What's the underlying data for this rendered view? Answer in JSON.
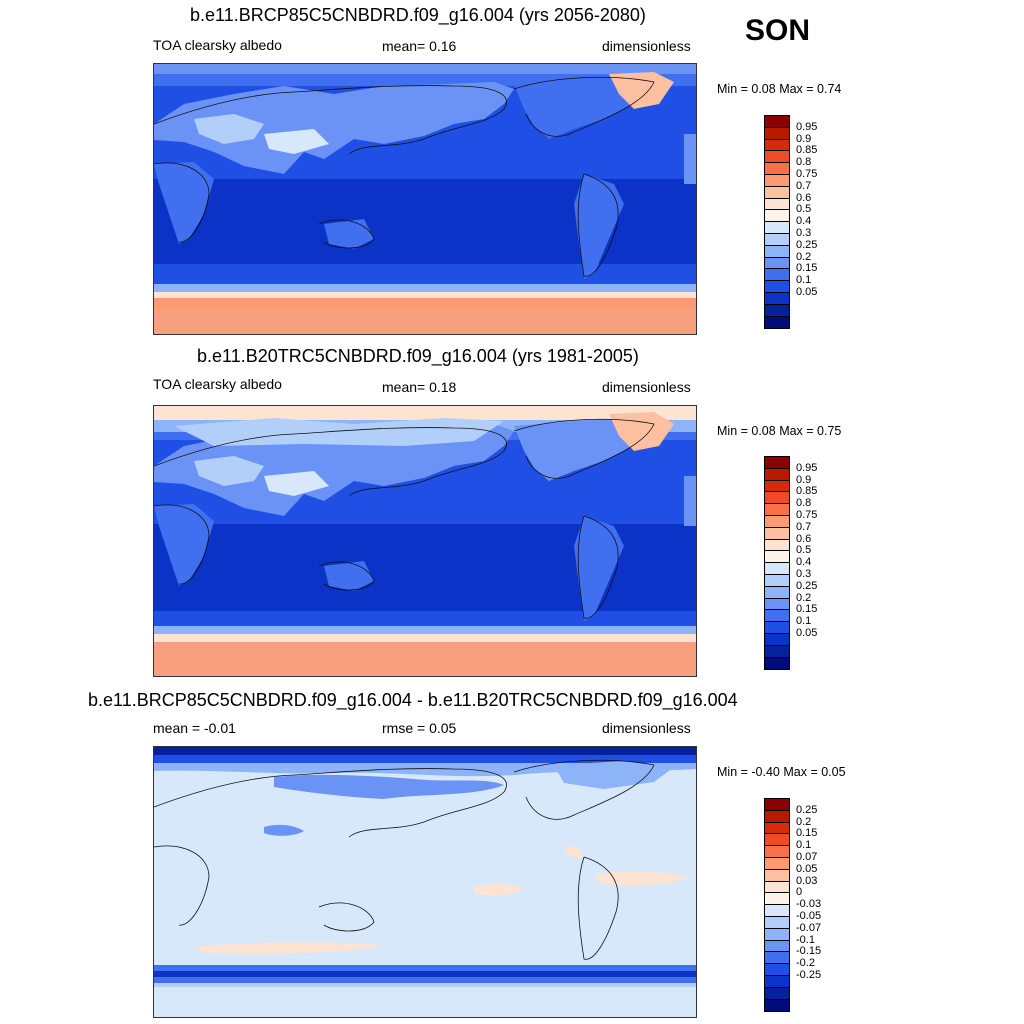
{
  "season": "SON",
  "panels": [
    {
      "title": "b.e11.BRCP85C5CNBDRD.f09_g16.004 (yrs 2056-2080)",
      "left_label": "TOA clearsky albedo",
      "center_label": "mean=   0.16",
      "right_label": "dimensionless",
      "minmax": "Min =   0.08 Max =   0.74",
      "colorbar": {
        "colors": [
          "#8b0000",
          "#b81a00",
          "#d62a0a",
          "#ee4c24",
          "#f8704a",
          "#fc9a72",
          "#fdc0a0",
          "#fde4d2",
          "#fdf3ea",
          "#d6e8fa",
          "#b2cffa",
          "#8db3f8",
          "#6a93f5",
          "#4070ef",
          "#1f4fe5",
          "#0b33c7",
          "#06229a",
          "#000c7a"
        ],
        "labels": [
          "0.95",
          "0.9",
          "0.85",
          "0.8",
          "0.75",
          "0.7",
          "0.6",
          "0.5",
          "0.4",
          "0.3",
          "0.25",
          "0.2",
          "0.15",
          "0.1",
          "0.05"
        ]
      }
    },
    {
      "title": "b.e11.B20TRC5CNBDRD.f09_g16.004 (yrs 1981-2005)",
      "left_label": "TOA clearsky albedo",
      "center_label": "mean=   0.18",
      "right_label": "dimensionless",
      "minmax": "Min =   0.08 Max =   0.75",
      "colorbar": {
        "colors": [
          "#8b0000",
          "#b81a00",
          "#d62a0a",
          "#ee4c24",
          "#f8704a",
          "#fc9a72",
          "#fdc0a0",
          "#fde4d2",
          "#fdf3ea",
          "#d6e8fa",
          "#b2cffa",
          "#8db3f8",
          "#6a93f5",
          "#4070ef",
          "#1f4fe5",
          "#0b33c7",
          "#06229a",
          "#000c7a"
        ],
        "labels": [
          "0.95",
          "0.9",
          "0.85",
          "0.8",
          "0.75",
          "0.7",
          "0.6",
          "0.5",
          "0.4",
          "0.3",
          "0.25",
          "0.2",
          "0.15",
          "0.1",
          "0.05"
        ]
      }
    },
    {
      "title": "b.e11.BRCP85C5CNBDRD.f09_g16.004 - b.e11.B20TRC5CNBDRD.f09_g16.004",
      "left_label": "mean =  -0.01",
      "center_label": "rmse =   0.05",
      "right_label": "dimensionless",
      "minmax": "Min =  -0.40 Max =   0.05",
      "colorbar": {
        "colors": [
          "#8b0000",
          "#b81a00",
          "#d62a0a",
          "#ee4c24",
          "#f8704a",
          "#fc9a72",
          "#fdc0a0",
          "#fde4d2",
          "#fdf3ea",
          "#d6e8fa",
          "#b2cffa",
          "#8db3f8",
          "#6a93f5",
          "#4070ef",
          "#1f4fe5",
          "#0b33c7",
          "#06229a",
          "#000c7a"
        ],
        "labels": [
          "0.25",
          "0.2",
          "0.15",
          "0.1",
          "0.07",
          "0.05",
          "0.03",
          "0",
          "-0.03",
          "-0.05",
          "-0.07",
          "-0.1",
          "-0.15",
          "-0.2",
          "-0.25"
        ]
      }
    }
  ]
}
